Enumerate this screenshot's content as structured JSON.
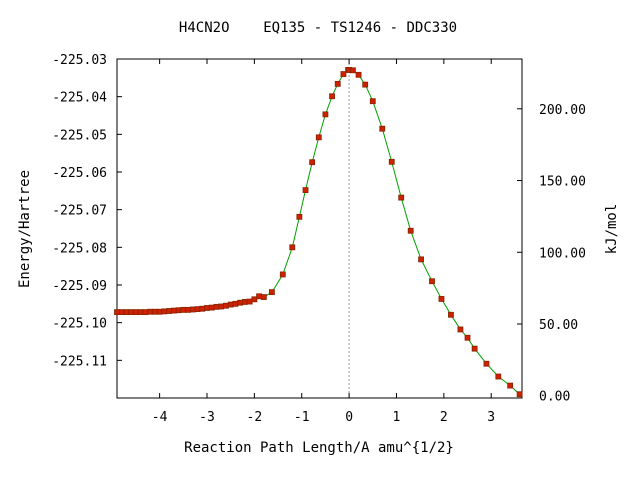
{
  "chart_data": {
    "type": "line",
    "title": "H4CN2O    EQ135 - TS1246 - DDC330",
    "xlabel": "Reaction Path Length/A amu^{1/2}",
    "ylabel_left": "Energy/Hartree",
    "ylabel_right": "kJ/mol",
    "xlim": [
      -4.9,
      3.65
    ],
    "ylim": [
      -225.12,
      -225.03
    ],
    "right_axis_kjmol_zero_hartree": -225.1194,
    "x_ticks": [
      -4,
      -3,
      -2,
      -1,
      0,
      1,
      2,
      3
    ],
    "x_tick_labels": [
      "-4",
      "-3",
      "-2",
      "-1",
      "0",
      "1",
      "2",
      "3"
    ],
    "y_ticks": [
      -225.03,
      -225.04,
      -225.05,
      -225.06,
      -225.07,
      -225.08,
      -225.09,
      -225.1,
      -225.11
    ],
    "y_tick_labels": [
      "-225.03",
      "-225.04",
      "-225.05",
      "-225.06",
      "-225.07",
      "-225.08",
      "-225.09",
      "-225.10",
      "-225.11"
    ],
    "y2_ticks": [
      0,
      50,
      100,
      150,
      200
    ],
    "y2_tick_labels": [
      "0.00",
      "50.00",
      "100.00",
      "150.00",
      "200.00"
    ],
    "ts_marker_x": 0,
    "colors": {
      "line": "#00a000",
      "marker_fill": "#cc2200",
      "marker_edge": "#882200",
      "ts_line": "#999999"
    },
    "series": [
      {
        "points": [
          [
            -4.9,
            -225.0972
          ],
          [
            -4.8,
            -225.0972
          ],
          [
            -4.7,
            -225.0972
          ],
          [
            -4.6,
            -225.0972
          ],
          [
            -4.5,
            -225.0972
          ],
          [
            -4.4,
            -225.0972
          ],
          [
            -4.3,
            -225.0972
          ],
          [
            -4.2,
            -225.0971
          ],
          [
            -4.1,
            -225.0971
          ],
          [
            -4.0,
            -225.0971
          ],
          [
            -3.9,
            -225.097
          ],
          [
            -3.8,
            -225.0969
          ],
          [
            -3.7,
            -225.0968
          ],
          [
            -3.6,
            -225.0967
          ],
          [
            -3.5,
            -225.0966
          ],
          [
            -3.4,
            -225.0966
          ],
          [
            -3.3,
            -225.0965
          ],
          [
            -3.2,
            -225.0964
          ],
          [
            -3.1,
            -225.0963
          ],
          [
            -3.0,
            -225.0961
          ],
          [
            -2.9,
            -225.096
          ],
          [
            -2.8,
            -225.0958
          ],
          [
            -2.7,
            -225.0957
          ],
          [
            -2.6,
            -225.0955
          ],
          [
            -2.5,
            -225.0952
          ],
          [
            -2.4,
            -225.095
          ],
          [
            -2.3,
            -225.0947
          ],
          [
            -2.2,
            -225.0945
          ],
          [
            -2.1,
            -225.0944
          ],
          [
            -2.0,
            -225.0938
          ],
          [
            -1.9,
            -225.093
          ],
          [
            -1.8,
            -225.0932
          ],
          [
            -1.63,
            -225.0919
          ],
          [
            -1.4,
            -225.0872
          ],
          [
            -1.2,
            -225.08
          ],
          [
            -1.05,
            -225.0719
          ],
          [
            -0.92,
            -225.0648
          ],
          [
            -0.78,
            -225.0574
          ],
          [
            -0.64,
            -225.0508
          ],
          [
            -0.5,
            -225.0447
          ],
          [
            -0.36,
            -225.0399
          ],
          [
            -0.24,
            -225.0366
          ],
          [
            -0.12,
            -225.034
          ],
          [
            -0.02,
            -225.0329
          ],
          [
            0.0,
            -225.0329
          ],
          [
            0.08,
            -225.033
          ],
          [
            0.2,
            -225.0342
          ],
          [
            0.34,
            -225.0368
          ],
          [
            0.5,
            -225.0412
          ],
          [
            0.7,
            -225.0485
          ],
          [
            0.9,
            -225.0573
          ],
          [
            1.1,
            -225.0668
          ],
          [
            1.3,
            -225.0756
          ],
          [
            1.52,
            -225.0832
          ],
          [
            1.75,
            -225.089
          ],
          [
            1.95,
            -225.0937
          ],
          [
            2.15,
            -225.0979
          ],
          [
            2.35,
            -225.1018
          ],
          [
            2.5,
            -225.104
          ],
          [
            2.65,
            -225.1069
          ],
          [
            2.9,
            -225.1109
          ],
          [
            3.15,
            -225.1143
          ],
          [
            3.4,
            -225.1167
          ],
          [
            3.6,
            -225.119
          ]
        ]
      }
    ]
  }
}
